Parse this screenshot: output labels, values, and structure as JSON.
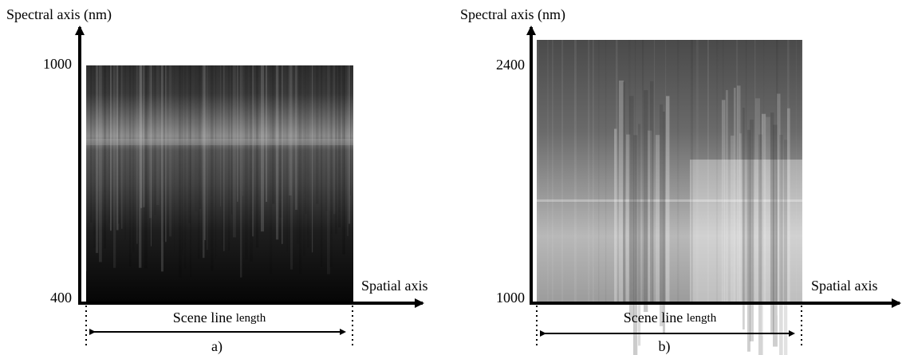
{
  "panels": [
    {
      "y_axis_label": "Spectral axis (nm)",
      "y_top": "1000",
      "y_bottom": "400",
      "x_axis_label": "Spatial axis",
      "scene_label": "Scene line",
      "scene_label_small": "length",
      "caption": "a)"
    },
    {
      "y_axis_label": "Spectral axis (nm)",
      "y_top": "2400",
      "y_bottom": "1000",
      "x_axis_label": "Spatial axis",
      "scene_label": "Scene line",
      "scene_label_small": "length",
      "caption": "b)"
    }
  ]
}
